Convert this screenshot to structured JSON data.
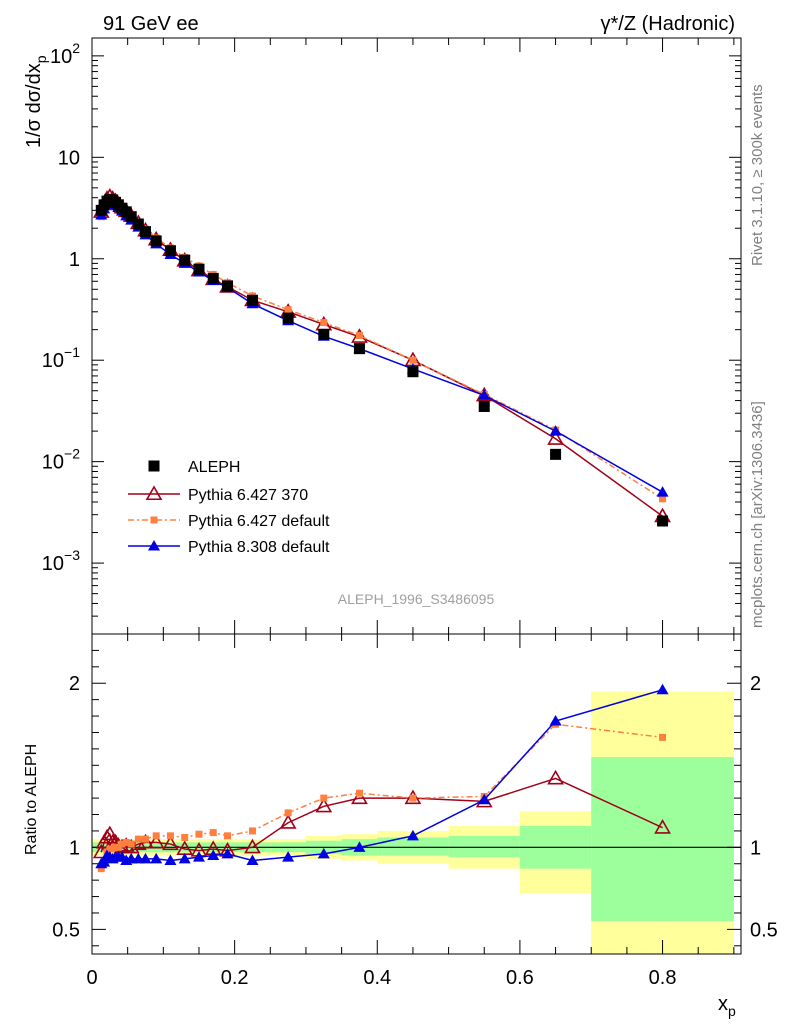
{
  "header": {
    "left": "91 GeV ee",
    "right": "γ*/Z (Hadronic)"
  },
  "side_labels": {
    "rivet": "Rivet 3.1.10, ≥ 300k events",
    "mcplots": "mcplots.cern.ch [arXiv:1306.3436]"
  },
  "watermark": "ALEPH_1996_S3486095",
  "colors": {
    "aleph": "#000000",
    "p6_370": "#a00018",
    "p6_default": "#ff7f3f",
    "p8_default": "#0000e0",
    "band_inner": "#9cff9c",
    "band_outer": "#ffff9c"
  },
  "chart_data": [
    {
      "type": "scatter",
      "panel": "main",
      "ylabel": "1/σ dσ/dx_p",
      "yscale": "log",
      "ylim": [
        0.0002,
        150
      ],
      "xlim": [
        0,
        0.91
      ],
      "y_tick_labels": [
        {
          "value": 100,
          "base": "10",
          "exp": "2"
        },
        {
          "value": 10,
          "base": "10",
          "exp": ""
        },
        {
          "value": 1,
          "base": "1",
          "exp": ""
        },
        {
          "value": 0.1,
          "base": "10",
          "exp": "−1"
        },
        {
          "value": 0.01,
          "base": "10",
          "exp": "−2"
        },
        {
          "value": 0.001,
          "base": "10",
          "exp": "−3"
        }
      ],
      "x": [
        0.013,
        0.017,
        0.021,
        0.025,
        0.029,
        0.033,
        0.037,
        0.042,
        0.048,
        0.055,
        0.065,
        0.075,
        0.09,
        0.11,
        0.13,
        0.15,
        0.17,
        0.19,
        0.225,
        0.275,
        0.325,
        0.375,
        0.45,
        0.55,
        0.65,
        0.8
      ],
      "series": [
        {
          "name": "ALEPH",
          "key": "aleph",
          "marker": "square",
          "values": [
            3.0,
            3.4,
            3.7,
            3.85,
            3.8,
            3.6,
            3.4,
            3.15,
            2.9,
            2.6,
            2.2,
            1.85,
            1.5,
            1.2,
            0.97,
            0.79,
            0.64,
            0.54,
            0.39,
            0.26,
            0.18,
            0.13,
            0.077,
            0.035,
            0.0118,
            0.0026
          ]
        },
        {
          "name": "Pythia 6.427 370",
          "key": "p6_370",
          "marker": "open-triangle",
          "values": [
            2.9,
            3.5,
            3.9,
            4.1,
            3.9,
            3.7,
            3.45,
            3.2,
            2.95,
            2.65,
            2.25,
            1.9,
            1.55,
            1.22,
            0.96,
            0.77,
            0.63,
            0.53,
            0.39,
            0.3,
            0.225,
            0.17,
            0.1,
            0.045,
            0.0168,
            0.0029
          ]
        },
        {
          "name": "Pythia 6.427 default",
          "key": "p6_default",
          "marker": "small-square",
          "values": [
            2.6,
            3.1,
            3.6,
            3.8,
            3.75,
            3.6,
            3.4,
            3.2,
            3.0,
            2.65,
            2.3,
            1.95,
            1.6,
            1.28,
            1.03,
            0.85,
            0.7,
            0.58,
            0.43,
            0.315,
            0.235,
            0.175,
            0.1,
            0.046,
            0.0205,
            0.0043
          ]
        },
        {
          "name": "Pythia 8.308 default",
          "key": "p8_default",
          "marker": "filled-triangle",
          "values": [
            2.7,
            3.1,
            3.5,
            3.6,
            3.55,
            3.4,
            3.2,
            2.95,
            2.65,
            2.4,
            2.05,
            1.72,
            1.4,
            1.1,
            0.9,
            0.74,
            0.61,
            0.52,
            0.36,
            0.245,
            0.172,
            0.13,
            0.082,
            0.045,
            0.02,
            0.005
          ]
        }
      ],
      "legend": {
        "placement": "lower-left",
        "entries": [
          "ALEPH",
          "Pythia 6.427 370",
          "Pythia 6.427 default",
          "Pythia 8.308 default"
        ]
      }
    },
    {
      "type": "scatter",
      "panel": "ratio",
      "ylabel": "Ratio to ALEPH",
      "xlabel": "x_p",
      "ylim": [
        0.35,
        2.3
      ],
      "xlim": [
        0,
        0.91
      ],
      "x_tick_labels": [
        {
          "value": 0,
          "label": "0"
        },
        {
          "value": 0.2,
          "label": "0.2"
        },
        {
          "value": 0.4,
          "label": "0.4"
        },
        {
          "value": 0.6,
          "label": "0.6"
        },
        {
          "value": 0.8,
          "label": "0.8"
        }
      ],
      "y_tick_labels": [
        {
          "value": 2,
          "label": "2"
        },
        {
          "value": 1,
          "label": "1"
        },
        {
          "value": 0.5,
          "label": "0.5"
        }
      ],
      "bands": [
        {
          "x0": 0.0,
          "x1": 0.2,
          "inner": [
            0.97,
            1.03
          ],
          "outer": [
            0.95,
            1.05
          ]
        },
        {
          "x0": 0.2,
          "x1": 0.25,
          "inner": [
            0.97,
            1.03
          ],
          "outer": [
            0.95,
            1.05
          ]
        },
        {
          "x0": 0.25,
          "x1": 0.3,
          "inner": [
            0.97,
            1.03
          ],
          "outer": [
            0.95,
            1.05
          ]
        },
        {
          "x0": 0.3,
          "x1": 0.35,
          "inner": [
            0.96,
            1.04
          ],
          "outer": [
            0.93,
            1.07
          ]
        },
        {
          "x0": 0.35,
          "x1": 0.4,
          "inner": [
            0.95,
            1.05
          ],
          "outer": [
            0.92,
            1.08
          ]
        },
        {
          "x0": 0.4,
          "x1": 0.5,
          "inner": [
            0.95,
            1.06
          ],
          "outer": [
            0.9,
            1.1
          ]
        },
        {
          "x0": 0.5,
          "x1": 0.6,
          "inner": [
            0.94,
            1.07
          ],
          "outer": [
            0.87,
            1.13
          ]
        },
        {
          "x0": 0.6,
          "x1": 0.7,
          "inner": [
            0.87,
            1.13
          ],
          "outer": [
            0.72,
            1.22
          ]
        },
        {
          "x0": 0.7,
          "x1": 0.9,
          "inner": [
            0.55,
            1.55
          ],
          "outer": [
            0.35,
            1.95
          ]
        }
      ],
      "x": [
        0.013,
        0.017,
        0.021,
        0.025,
        0.029,
        0.033,
        0.037,
        0.042,
        0.048,
        0.055,
        0.065,
        0.075,
        0.09,
        0.11,
        0.13,
        0.15,
        0.17,
        0.19,
        0.225,
        0.275,
        0.325,
        0.375,
        0.45,
        0.55,
        0.65,
        0.8
      ],
      "series": [
        {
          "name": "Pythia 6.427 370",
          "key": "p6_370",
          "marker": "open-triangle",
          "values": [
            0.97,
            1.03,
            1.06,
            1.08,
            1.03,
            1.03,
            1.01,
            1.0,
            1.01,
            1.0,
            1.02,
            1.03,
            1.03,
            1.02,
            0.99,
            0.98,
            0.99,
            0.98,
            1.0,
            1.15,
            1.25,
            1.3,
            1.3,
            1.28,
            1.42,
            1.12
          ]
        },
        {
          "name": "Pythia 6.427 default",
          "key": "p6_default",
          "marker": "small-square",
          "values": [
            0.87,
            0.91,
            0.97,
            0.99,
            0.99,
            1.0,
            1.0,
            1.02,
            1.03,
            1.02,
            1.05,
            1.05,
            1.07,
            1.07,
            1.06,
            1.08,
            1.09,
            1.07,
            1.1,
            1.21,
            1.3,
            1.33,
            1.3,
            1.31,
            1.75,
            1.67
          ]
        },
        {
          "name": "Pythia 8.308 default",
          "key": "p8_default",
          "marker": "filled-triangle",
          "values": [
            0.9,
            0.91,
            0.95,
            0.94,
            0.93,
            0.94,
            0.94,
            0.94,
            0.92,
            0.93,
            0.93,
            0.93,
            0.93,
            0.92,
            0.93,
            0.94,
            0.95,
            0.96,
            0.92,
            0.94,
            0.96,
            1.0,
            1.07,
            1.29,
            1.77,
            1.96
          ]
        }
      ]
    }
  ]
}
